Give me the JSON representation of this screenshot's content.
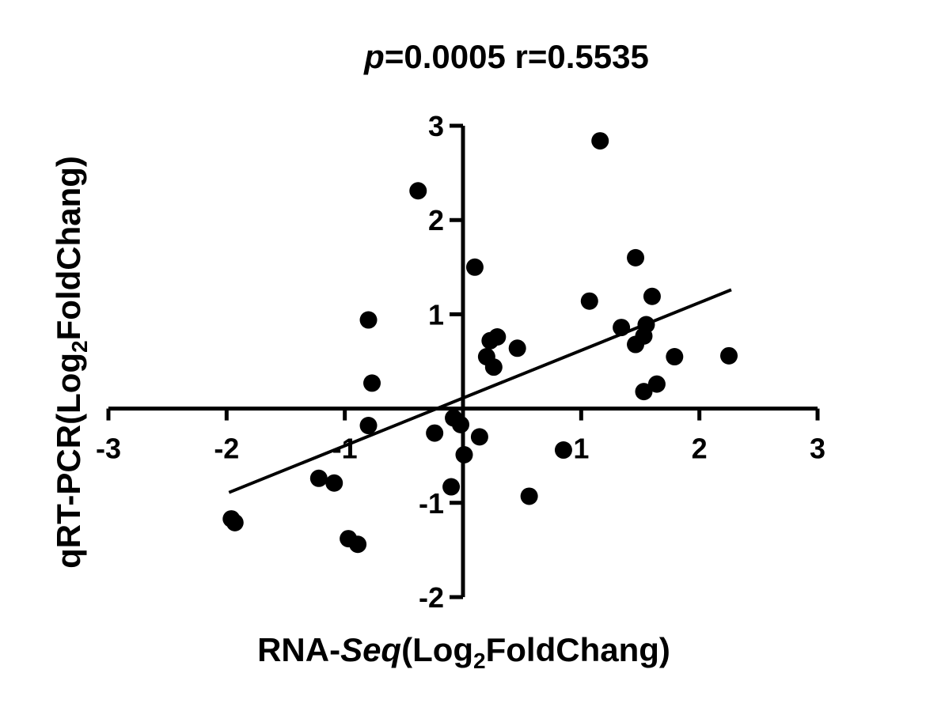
{
  "chart_data": {
    "type": "scatter",
    "title": {
      "p_symbol": "p",
      "p_value": "=0.0005",
      "r_text": " r=0.5535"
    },
    "xlabel": {
      "prefix": "RNA-",
      "italic": "Seq",
      "pre_sub": "(Log",
      "sub": "2",
      "post_sub": "FoldChang)"
    },
    "ylabel": {
      "prefix": "qRT-PCR(Log",
      "sub": "2",
      "post_sub": "FoldChang)"
    },
    "xlim": [
      -3,
      3
    ],
    "ylim": [
      -2,
      3
    ],
    "x_ticks": [
      -3,
      -2,
      -1,
      1,
      2,
      3
    ],
    "y_ticks": [
      -2,
      -1,
      1,
      2,
      3
    ],
    "x_tick_labels": [
      "-3",
      "-2",
      "-1",
      "1",
      "2",
      "3"
    ],
    "y_tick_labels": [
      "-2",
      "-1",
      "1",
      "2",
      "3"
    ],
    "axes_cross_at": [
      0,
      0
    ],
    "grid": false,
    "marker_color": "#000000",
    "points": [
      {
        "x": 1.16,
        "y": 2.84
      },
      {
        "x": -0.38,
        "y": 2.31
      },
      {
        "x": 0.1,
        "y": 1.5
      },
      {
        "x": 1.46,
        "y": 1.6
      },
      {
        "x": 1.6,
        "y": 1.19
      },
      {
        "x": 1.07,
        "y": 1.14
      },
      {
        "x": -0.8,
        "y": 0.94
      },
      {
        "x": 1.34,
        "y": 0.86
      },
      {
        "x": 1.55,
        "y": 0.89
      },
      {
        "x": 1.53,
        "y": 0.77
      },
      {
        "x": 1.46,
        "y": 0.68
      },
      {
        "x": 0.29,
        "y": 0.76
      },
      {
        "x": 0.23,
        "y": 0.72
      },
      {
        "x": 0.46,
        "y": 0.64
      },
      {
        "x": 0.2,
        "y": 0.55
      },
      {
        "x": 0.26,
        "y": 0.44
      },
      {
        "x": 1.79,
        "y": 0.55
      },
      {
        "x": 2.25,
        "y": 0.56
      },
      {
        "x": -0.77,
        "y": 0.27
      },
      {
        "x": 1.64,
        "y": 0.26
      },
      {
        "x": 1.53,
        "y": 0.18
      },
      {
        "x": -0.08,
        "y": -0.1
      },
      {
        "x": -0.02,
        "y": -0.17
      },
      {
        "x": -0.8,
        "y": -0.18
      },
      {
        "x": -0.24,
        "y": -0.26
      },
      {
        "x": 0.14,
        "y": -0.3
      },
      {
        "x": 0.85,
        "y": -0.44
      },
      {
        "x": 0.01,
        "y": -0.49
      },
      {
        "x": -1.22,
        "y": -0.74
      },
      {
        "x": -1.09,
        "y": -0.79
      },
      {
        "x": -0.1,
        "y": -0.83
      },
      {
        "x": 0.56,
        "y": -0.93
      },
      {
        "x": -1.96,
        "y": -1.17
      },
      {
        "x": -1.93,
        "y": -1.21
      },
      {
        "x": -0.97,
        "y": -1.38
      },
      {
        "x": -0.89,
        "y": -1.44
      }
    ],
    "trendline": {
      "x": [
        -1.98,
        2.27
      ],
      "y": [
        -0.89,
        1.26
      ]
    }
  }
}
